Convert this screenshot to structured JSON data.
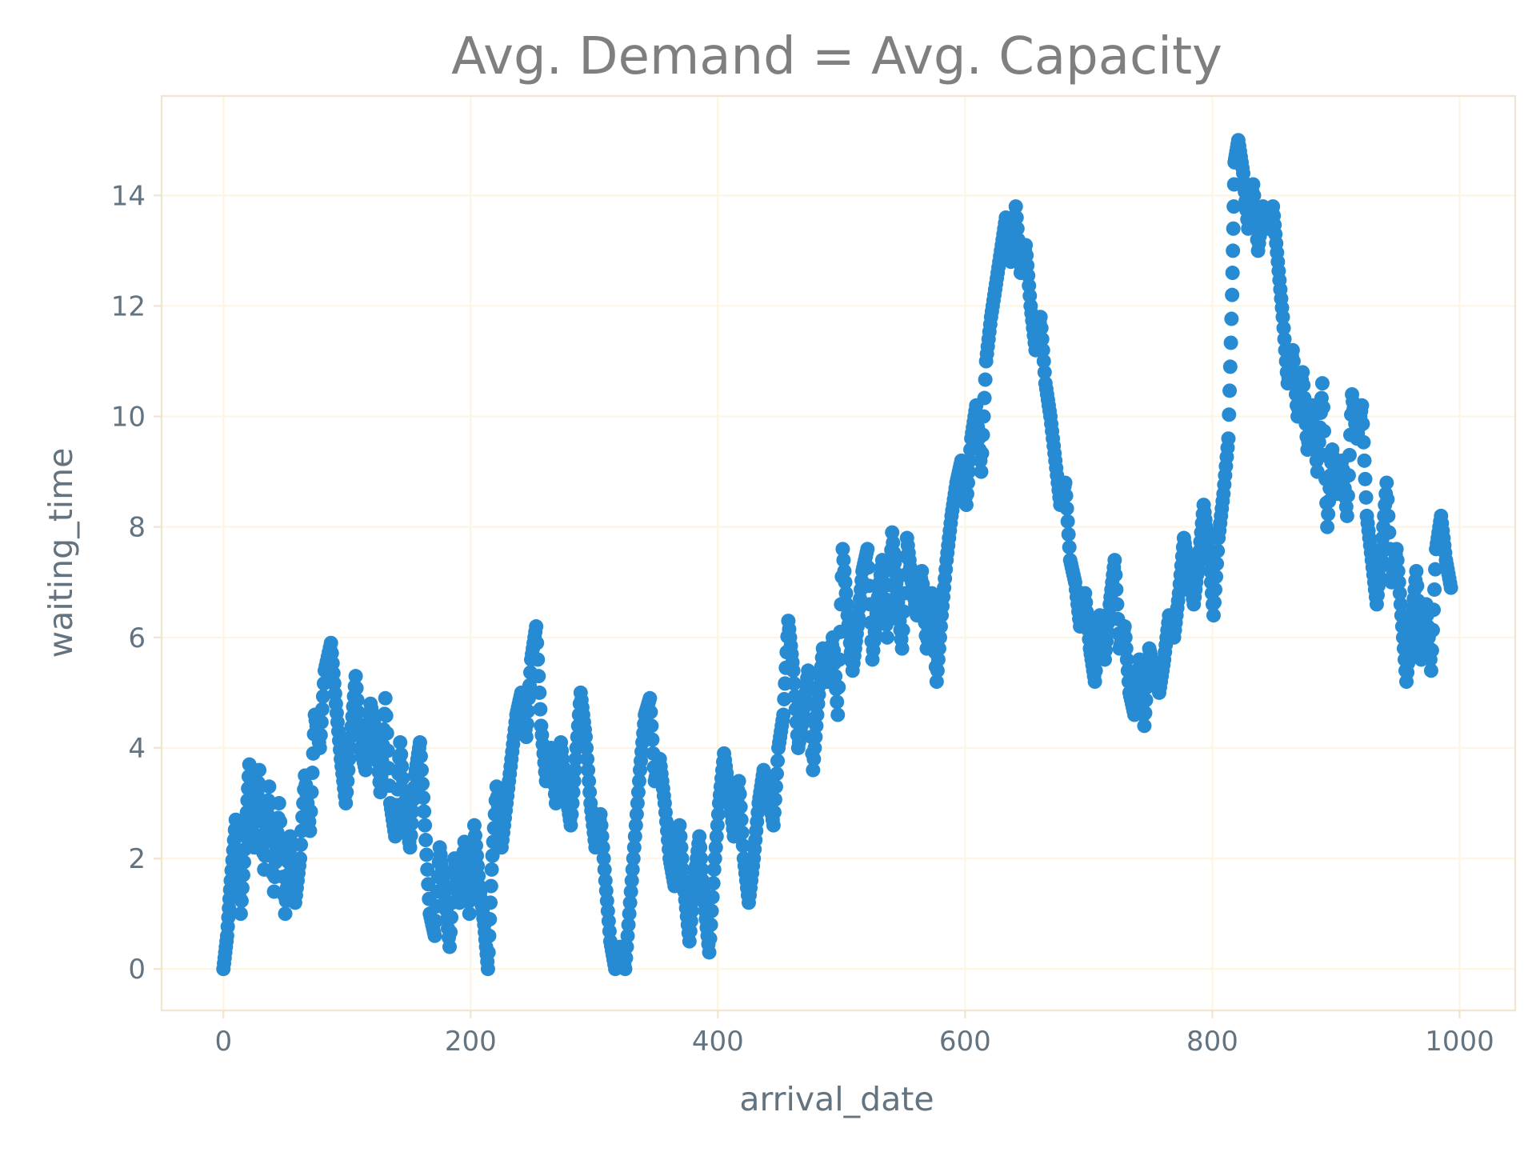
{
  "chart_data": {
    "type": "scatter",
    "title": "Avg. Demand = Avg. Capacity",
    "xlabel": "arrival_date",
    "ylabel": "waiting_time",
    "xlim": [
      -50,
      1045
    ],
    "ylim": [
      -0.75,
      15.8
    ],
    "x_ticks": [
      0,
      200,
      400,
      600,
      800,
      1000
    ],
    "y_ticks": [
      0,
      2,
      4,
      6,
      8,
      10,
      12,
      14
    ],
    "grid": true,
    "marker_color": "#268bd2",
    "series": [
      {
        "points_approx": [
          [
            0,
            0
          ],
          [
            3,
            0.6
          ],
          [
            6,
            1.6
          ],
          [
            10,
            2.7
          ],
          [
            14,
            1.0
          ],
          [
            18,
            2.4
          ],
          [
            21,
            3.7
          ],
          [
            25,
            2.2
          ],
          [
            29,
            3.6
          ],
          [
            33,
            1.8
          ],
          [
            37,
            3.3
          ],
          [
            41,
            1.4
          ],
          [
            45,
            3.0
          ],
          [
            50,
            1.0
          ],
          [
            54,
            2.4
          ],
          [
            58,
            1.2
          ],
          [
            62,
            2.0
          ],
          [
            66,
            3.5
          ],
          [
            70,
            2.5
          ],
          [
            74,
            4.6
          ],
          [
            78,
            4.0
          ],
          [
            82,
            5.4
          ],
          [
            87,
            5.9
          ],
          [
            91,
            4.8
          ],
          [
            95,
            3.8
          ],
          [
            99,
            3.0
          ],
          [
            103,
            4.2
          ],
          [
            107,
            5.3
          ],
          [
            111,
            4.0
          ],
          [
            115,
            3.6
          ],
          [
            119,
            4.8
          ],
          [
            123,
            4.3
          ],
          [
            127,
            3.2
          ],
          [
            131,
            4.9
          ],
          [
            135,
            3.0
          ],
          [
            139,
            2.4
          ],
          [
            143,
            4.1
          ],
          [
            147,
            2.8
          ],
          [
            151,
            2.2
          ],
          [
            155,
            3.5
          ],
          [
            159,
            4.1
          ],
          [
            163,
            2.6
          ],
          [
            167,
            1.0
          ],
          [
            171,
            0.6
          ],
          [
            175,
            2.2
          ],
          [
            179,
            1.4
          ],
          [
            183,
            0.4
          ],
          [
            187,
            2.0
          ],
          [
            191,
            1.2
          ],
          [
            195,
            2.3
          ],
          [
            199,
            1.0
          ],
          [
            203,
            2.6
          ],
          [
            207,
            1.5
          ],
          [
            211,
            0.8
          ],
          [
            214,
            0.0
          ],
          [
            217,
            1.8
          ],
          [
            221,
            3.3
          ],
          [
            225,
            2.2
          ],
          [
            229,
            3.0
          ],
          [
            233,
            3.8
          ],
          [
            237,
            4.6
          ],
          [
            241,
            5.0
          ],
          [
            245,
            4.2
          ],
          [
            249,
            5.6
          ],
          [
            253,
            6.2
          ],
          [
            257,
            4.4
          ],
          [
            261,
            3.4
          ],
          [
            265,
            4.0
          ],
          [
            269,
            3.0
          ],
          [
            273,
            4.1
          ],
          [
            277,
            3.2
          ],
          [
            281,
            2.6
          ],
          [
            285,
            3.8
          ],
          [
            289,
            5.0
          ],
          [
            293,
            4.2
          ],
          [
            297,
            3.0
          ],
          [
            301,
            2.2
          ],
          [
            305,
            2.8
          ],
          [
            309,
            1.6
          ],
          [
            313,
            0.5
          ],
          [
            317,
            0.0
          ],
          [
            321,
            0.4
          ],
          [
            325,
            0.0
          ],
          [
            329,
            1.2
          ],
          [
            333,
            2.4
          ],
          [
            337,
            3.6
          ],
          [
            341,
            4.6
          ],
          [
            345,
            4.9
          ],
          [
            349,
            3.4
          ],
          [
            353,
            3.8
          ],
          [
            357,
            3.0
          ],
          [
            361,
            2.0
          ],
          [
            365,
            1.5
          ],
          [
            369,
            2.6
          ],
          [
            373,
            1.4
          ],
          [
            377,
            0.5
          ],
          [
            381,
            1.6
          ],
          [
            385,
            2.4
          ],
          [
            389,
            1.2
          ],
          [
            393,
            0.3
          ],
          [
            397,
            1.8
          ],
          [
            401,
            3.0
          ],
          [
            405,
            3.9
          ],
          [
            409,
            3.2
          ],
          [
            413,
            2.4
          ],
          [
            417,
            3.4
          ],
          [
            421,
            2.0
          ],
          [
            425,
            1.2
          ],
          [
            429,
            2.0
          ],
          [
            433,
            3.0
          ],
          [
            437,
            3.6
          ],
          [
            441,
            3.2
          ],
          [
            445,
            2.6
          ],
          [
            449,
            4.0
          ],
          [
            453,
            4.6
          ],
          [
            457,
            6.3
          ],
          [
            461,
            5.4
          ],
          [
            465,
            4.0
          ],
          [
            469,
            4.6
          ],
          [
            473,
            5.4
          ],
          [
            477,
            3.6
          ],
          [
            481,
            4.8
          ],
          [
            485,
            5.8
          ],
          [
            489,
            5.2
          ],
          [
            493,
            6.0
          ],
          [
            497,
            4.6
          ],
          [
            501,
            7.6
          ],
          [
            505,
            6.4
          ],
          [
            509,
            5.4
          ],
          [
            513,
            6.2
          ],
          [
            517,
            7.2
          ],
          [
            521,
            7.6
          ],
          [
            525,
            5.6
          ],
          [
            529,
            6.6
          ],
          [
            533,
            7.4
          ],
          [
            537,
            6.0
          ],
          [
            541,
            7.9
          ],
          [
            545,
            6.8
          ],
          [
            549,
            5.8
          ],
          [
            553,
            7.8
          ],
          [
            557,
            7.0
          ],
          [
            561,
            6.4
          ],
          [
            565,
            7.2
          ],
          [
            569,
            5.8
          ],
          [
            573,
            6.8
          ],
          [
            577,
            5.2
          ],
          [
            581,
            6.4
          ],
          [
            585,
            7.4
          ],
          [
            589,
            8.2
          ],
          [
            593,
            8.8
          ],
          [
            597,
            9.2
          ],
          [
            601,
            8.4
          ],
          [
            605,
            9.6
          ],
          [
            609,
            10.2
          ],
          [
            613,
            9.0
          ],
          [
            617,
            11.0
          ],
          [
            621,
            11.8
          ],
          [
            625,
            12.4
          ],
          [
            629,
            13.0
          ],
          [
            633,
            13.6
          ],
          [
            637,
            12.8
          ],
          [
            641,
            13.8
          ],
          [
            645,
            12.6
          ],
          [
            649,
            13.1
          ],
          [
            653,
            12.0
          ],
          [
            657,
            11.2
          ],
          [
            661,
            11.8
          ],
          [
            665,
            10.6
          ],
          [
            669,
            10.0
          ],
          [
            673,
            9.2
          ],
          [
            677,
            8.4
          ],
          [
            681,
            8.8
          ],
          [
            685,
            7.4
          ],
          [
            689,
            7.0
          ],
          [
            693,
            6.2
          ],
          [
            697,
            6.8
          ],
          [
            701,
            5.8
          ],
          [
            705,
            5.2
          ],
          [
            709,
            6.4
          ],
          [
            713,
            5.6
          ],
          [
            717,
            6.6
          ],
          [
            721,
            7.4
          ],
          [
            725,
            5.8
          ],
          [
            729,
            6.2
          ],
          [
            733,
            5.0
          ],
          [
            737,
            4.6
          ],
          [
            741,
            5.6
          ],
          [
            745,
            4.4
          ],
          [
            749,
            5.8
          ],
          [
            753,
            5.4
          ],
          [
            757,
            5.0
          ],
          [
            761,
            5.6
          ],
          [
            765,
            6.4
          ],
          [
            769,
            6.0
          ],
          [
            773,
            6.8
          ],
          [
            777,
            7.8
          ],
          [
            781,
            7.2
          ],
          [
            785,
            6.6
          ],
          [
            789,
            7.4
          ],
          [
            793,
            8.4
          ],
          [
            797,
            7.6
          ],
          [
            801,
            6.4
          ],
          [
            805,
            7.8
          ],
          [
            809,
            8.6
          ],
          [
            813,
            9.6
          ],
          [
            816,
            12.2
          ],
          [
            818,
            14.6
          ],
          [
            821,
            15.0
          ],
          [
            825,
            14.4
          ],
          [
            829,
            13.4
          ],
          [
            833,
            14.2
          ],
          [
            837,
            13.0
          ],
          [
            841,
            13.8
          ],
          [
            845,
            13.4
          ],
          [
            849,
            13.8
          ],
          [
            853,
            12.8
          ],
          [
            857,
            11.8
          ],
          [
            861,
            10.6
          ],
          [
            865,
            11.2
          ],
          [
            869,
            10.0
          ],
          [
            873,
            10.8
          ],
          [
            877,
            9.4
          ],
          [
            881,
            10.2
          ],
          [
            885,
            9.0
          ],
          [
            889,
            10.6
          ],
          [
            893,
            8.0
          ],
          [
            897,
            9.4
          ],
          [
            901,
            8.6
          ],
          [
            905,
            9.2
          ],
          [
            909,
            8.2
          ],
          [
            913,
            10.4
          ],
          [
            917,
            9.6
          ],
          [
            921,
            10.2
          ],
          [
            925,
            8.2
          ],
          [
            929,
            7.4
          ],
          [
            933,
            6.6
          ],
          [
            937,
            7.6
          ],
          [
            941,
            8.8
          ],
          [
            945,
            7.0
          ],
          [
            949,
            7.6
          ],
          [
            953,
            6.4
          ],
          [
            957,
            5.2
          ],
          [
            961,
            6.2
          ],
          [
            965,
            7.2
          ],
          [
            969,
            5.6
          ],
          [
            973,
            6.6
          ],
          [
            977,
            5.4
          ],
          [
            981,
            7.6
          ],
          [
            985,
            8.2
          ],
          [
            989,
            7.4
          ],
          [
            993,
            6.9
          ]
        ]
      }
    ]
  }
}
